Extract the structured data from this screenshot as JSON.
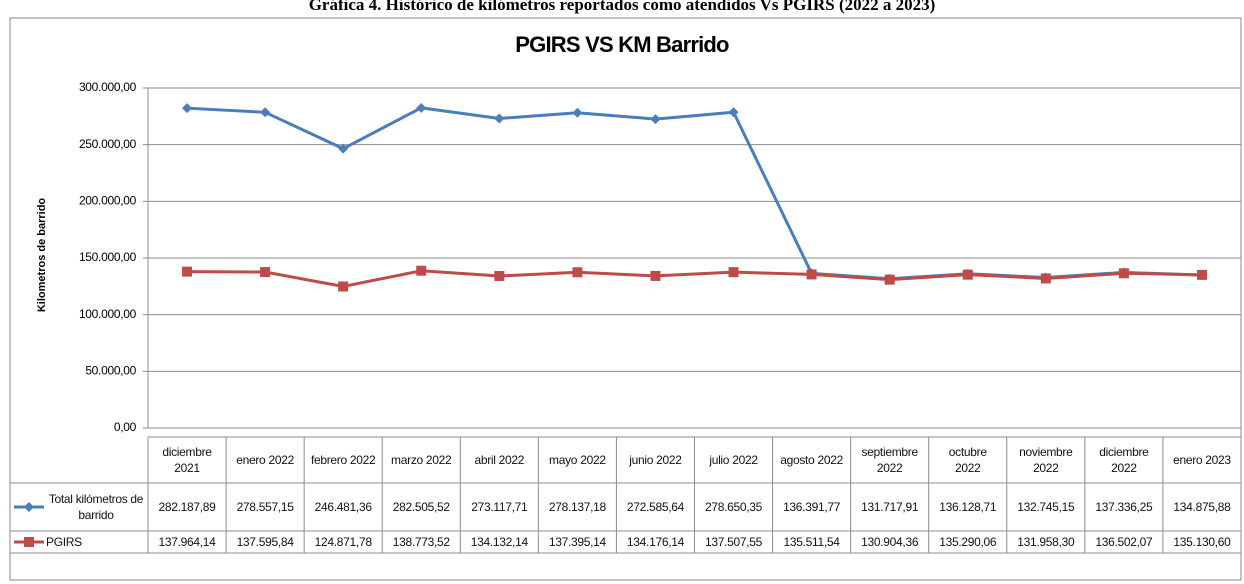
{
  "caption": "Gráfica 4. Histórico de kilómetros reportados como atendidos Vs PGIRS (2022 a 2023)",
  "chart_data": {
    "type": "line",
    "title": "PGIRS VS KM Barrido",
    "y_label": "Kilometros de barrido",
    "categories": [
      "diciembre 2021",
      "enero 2022",
      "febrero 2022",
      "marzo 2022",
      "abril 2022",
      "mayo 2022",
      "junio 2022",
      "julio 2022",
      "agosto 2022",
      "septiembre 2022",
      "octubre 2022",
      "noviembre 2022",
      "diciembre 2022",
      "enero 2023"
    ],
    "series": [
      {
        "name": "Total kilómetros de barrido",
        "color": "#4a7ebb",
        "marker": "diamond",
        "values": [
          282187.89,
          278557.15,
          246481.36,
          282505.52,
          273117.71,
          278137.18,
          272585.64,
          278650.35,
          136391.77,
          131717.91,
          136128.71,
          132745.15,
          137336.25,
          134875.88
        ],
        "value_labels": [
          "282.187,89",
          "278.557,15",
          "246.481,36",
          "282.505,52",
          "273.117,71",
          "278.137,18",
          "272.585,64",
          "278.650,35",
          "136.391,77",
          "131.717,91",
          "136.128,71",
          "132.745,15",
          "137.336,25",
          "134.875,88"
        ]
      },
      {
        "name": "PGIRS",
        "color": "#be4b48",
        "marker": "square",
        "values": [
          137964.14,
          137595.84,
          124871.78,
          138773.52,
          134132.14,
          137395.14,
          134176.14,
          137507.55,
          135511.54,
          130904.36,
          135290.06,
          131958.3,
          136502.07,
          135130.6
        ],
        "value_labels": [
          "137.964,14",
          "137.595,84",
          "124.871,78",
          "138.773,52",
          "134.132,14",
          "137.395,14",
          "134.176,14",
          "137.507,55",
          "135.511,54",
          "130.904,36",
          "135.290,06",
          "131.958,30",
          "136.502,07",
          "135.130,60"
        ]
      }
    ],
    "ylim": [
      0,
      300000
    ],
    "yticks": [
      {
        "value": 0,
        "label": "0,00"
      },
      {
        "value": 50000,
        "label": "50.000,00"
      },
      {
        "value": 100000,
        "label": "100.000,00"
      },
      {
        "value": 150000,
        "label": "150.000,00"
      },
      {
        "value": 200000,
        "label": "200.000,00"
      },
      {
        "value": 250000,
        "label": "250.000,00"
      },
      {
        "value": 300000,
        "label": "300.000,00"
      }
    ],
    "grid": true
  }
}
